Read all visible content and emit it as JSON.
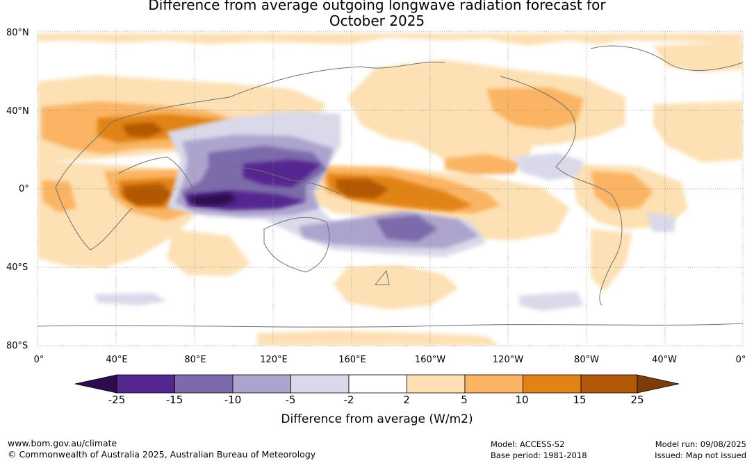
{
  "title": {
    "line1": "Difference from average outgoing longwave radiation forecast for",
    "line2": "October 2025"
  },
  "map": {
    "projection": "equirectangular",
    "lat_labels": [
      "80°N",
      "40°N",
      "0°",
      "40°S",
      "80°S"
    ],
    "lon_labels": [
      "0°",
      "40°E",
      "80°E",
      "120°E",
      "160°E",
      "160°W",
      "120°W",
      "80°W",
      "40°W",
      "0°"
    ],
    "anomaly_regions": [
      {
        "name": "maritime-continent-negative",
        "category": "-25"
      },
      {
        "name": "indian-ocean-positive",
        "category": "15"
      },
      {
        "name": "west-pacific-positive",
        "category": "15"
      },
      {
        "name": "south-pacific-negative",
        "category": "-10"
      },
      {
        "name": "asia-positive",
        "category": "10"
      }
    ]
  },
  "colorbar": {
    "title": "Difference from average (W/m2)",
    "ticks": [
      "-25",
      "-15",
      "-10",
      "-5",
      "-2",
      "2",
      "5",
      "10",
      "15",
      "25"
    ],
    "colors": [
      "#2e0a4e",
      "#54278f",
      "#7c6aab",
      "#ada4cd",
      "#d9d9ea",
      "#ffffff",
      "#fde0b3",
      "#fbb463",
      "#e28318",
      "#b35806",
      "#7f3b08"
    ]
  },
  "footer": {
    "url": "www.bom.gov.au/climate",
    "copyright": "© Commonwealth of Australia 2025, Australian Bureau of Meteorology",
    "model": "Model: ACCESS-S2",
    "base_period": "Base period: 1981-2018",
    "model_run": "Model run: 09/08/2025",
    "issued": "Issued: Map not issued"
  }
}
